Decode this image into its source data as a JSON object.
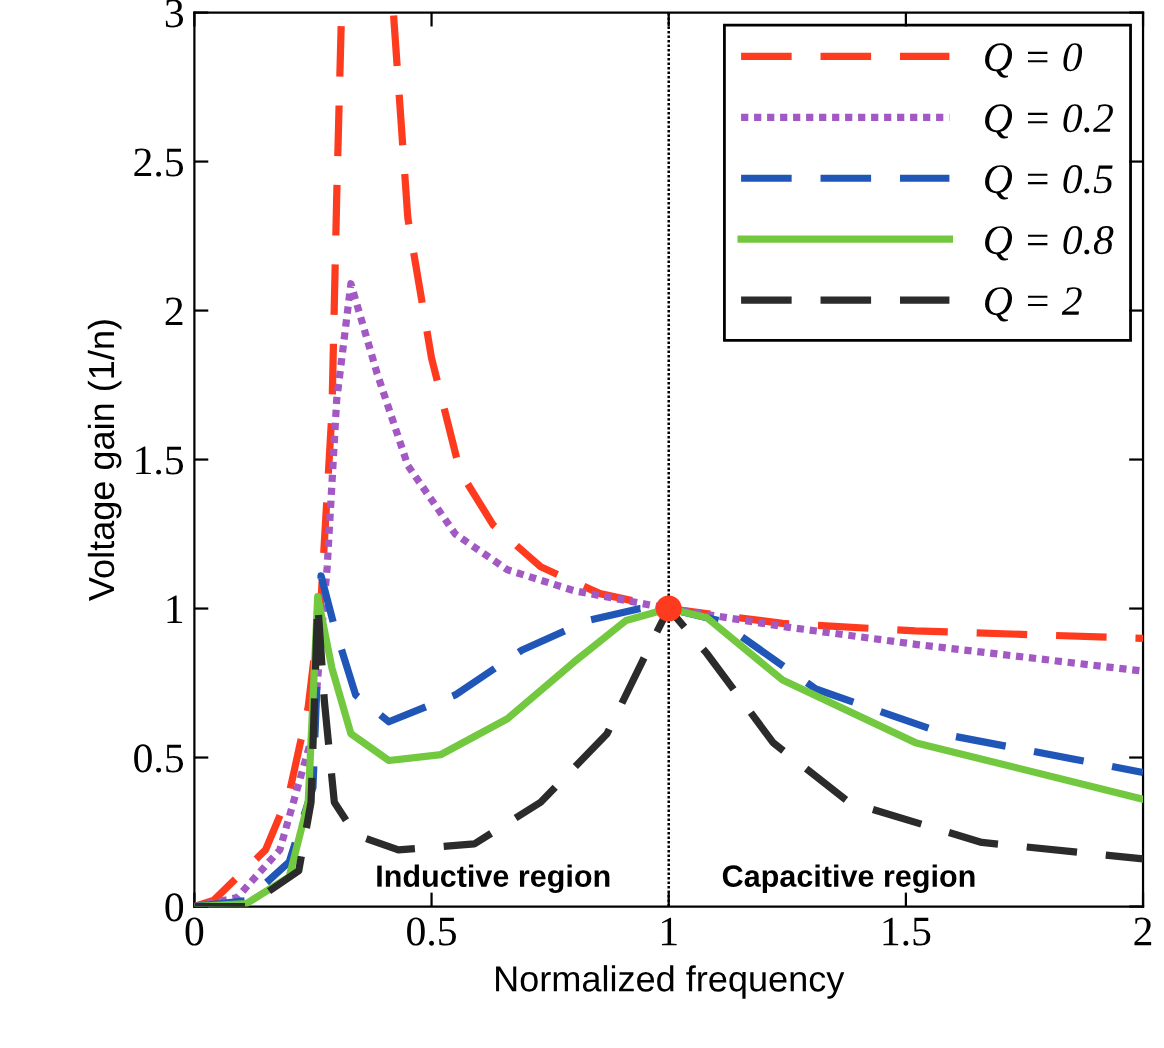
{
  "chart_data": {
    "type": "line",
    "xlabel": "Normalized frequency",
    "ylabel": "Voltage gain (1/n)",
    "xlim": [
      0,
      2
    ],
    "ylim": [
      0,
      3
    ],
    "xticks": [
      0,
      0.5,
      1,
      1.5,
      2
    ],
    "yticks": [
      0,
      0.5,
      1,
      1.5,
      2,
      2.5,
      3
    ],
    "grid": false,
    "legend": "top right",
    "marker": "none",
    "series": [
      {
        "name": "Q = 0",
        "color": "#ff3b1f",
        "line_style": "dashed",
        "x": [
          0,
          0.04,
          0.15,
          0.2,
          0.24,
          0.267,
          0.29,
          0.3,
          0.31,
          0.36,
          0.42,
          0.45,
          0.5,
          0.56,
          0.63,
          0.73,
          0.855,
          1,
          1.24,
          1.52,
          2
        ],
        "values": [
          0,
          0.02,
          0.19,
          0.38,
          0.67,
          1.03,
          1.66,
          2.38,
          2.99,
          null,
          2.99,
          2.31,
          1.84,
          1.46,
          1.28,
          1.14,
          1.05,
          1,
          0.95,
          0.925,
          0.9
        ]
      },
      {
        "name": "Q = 0.2",
        "color": "#a259c4",
        "line_style": "dotted",
        "x": [
          0,
          0.09,
          0.18,
          0.25,
          0.28,
          0.3,
          0.33,
          0.385,
          0.45,
          0.55,
          0.66,
          0.8,
          1,
          1.24,
          1.52,
          2
        ],
        "values": [
          0,
          0.03,
          0.19,
          0.58,
          1.14,
          1.7,
          2.09,
          1.79,
          1.48,
          1.25,
          1.13,
          1.06,
          1,
          0.94,
          0.88,
          0.79
        ]
      },
      {
        "name": "Q = 0.5",
        "color": "#1f56b8",
        "line_style": "dashed",
        "x": [
          0,
          0.11,
          0.2,
          0.25,
          0.267,
          0.295,
          0.34,
          0.41,
          0.55,
          0.69,
          0.83,
          0.94,
          1,
          1.105,
          1.31,
          1.59,
          2
        ],
        "values": [
          0,
          0.02,
          0.15,
          0.4,
          1.11,
          0.94,
          0.71,
          0.62,
          0.71,
          0.86,
          0.96,
          1,
          1,
          0.96,
          0.73,
          0.575,
          0.45
        ]
      },
      {
        "name": "Q = 0.8",
        "color": "#72c83e",
        "line_style": "solid",
        "x": [
          0,
          0.11,
          0.2,
          0.24,
          0.26,
          0.29,
          0.33,
          0.41,
          0.52,
          0.66,
          0.8,
          0.91,
          1,
          1.08,
          1.24,
          1.52,
          2
        ],
        "values": [
          0,
          0.01,
          0.1,
          0.35,
          1.04,
          0.8,
          0.58,
          0.49,
          0.51,
          0.63,
          0.82,
          0.96,
          1,
          0.97,
          0.76,
          0.55,
          0.36
        ]
      },
      {
        "name": "Q = 2",
        "color": "#2b2b2b",
        "line_style": "dashed",
        "x": [
          0,
          0.11,
          0.22,
          0.246,
          0.26,
          0.274,
          0.295,
          0.34,
          0.43,
          0.59,
          0.73,
          0.87,
          0.965,
          1,
          1.08,
          1.22,
          1.38,
          1.66,
          2
        ],
        "values": [
          0,
          0,
          0.12,
          0.35,
          1.02,
          0.69,
          0.35,
          0.24,
          0.19,
          0.21,
          0.35,
          0.58,
          0.89,
          1,
          0.85,
          0.55,
          0.35,
          0.215,
          0.16
        ]
      },
      {
        "type": "scatter",
        "color": "#ff3b1f",
        "marker": "circle",
        "x": [
          1
        ],
        "values": [
          1
        ]
      }
    ],
    "ref_lines": [
      {
        "axis": "x",
        "value": 1,
        "color": "#000000",
        "line_style": "dotted"
      }
    ],
    "annotations": [
      "Inductive region",
      "Capacitive region"
    ]
  }
}
